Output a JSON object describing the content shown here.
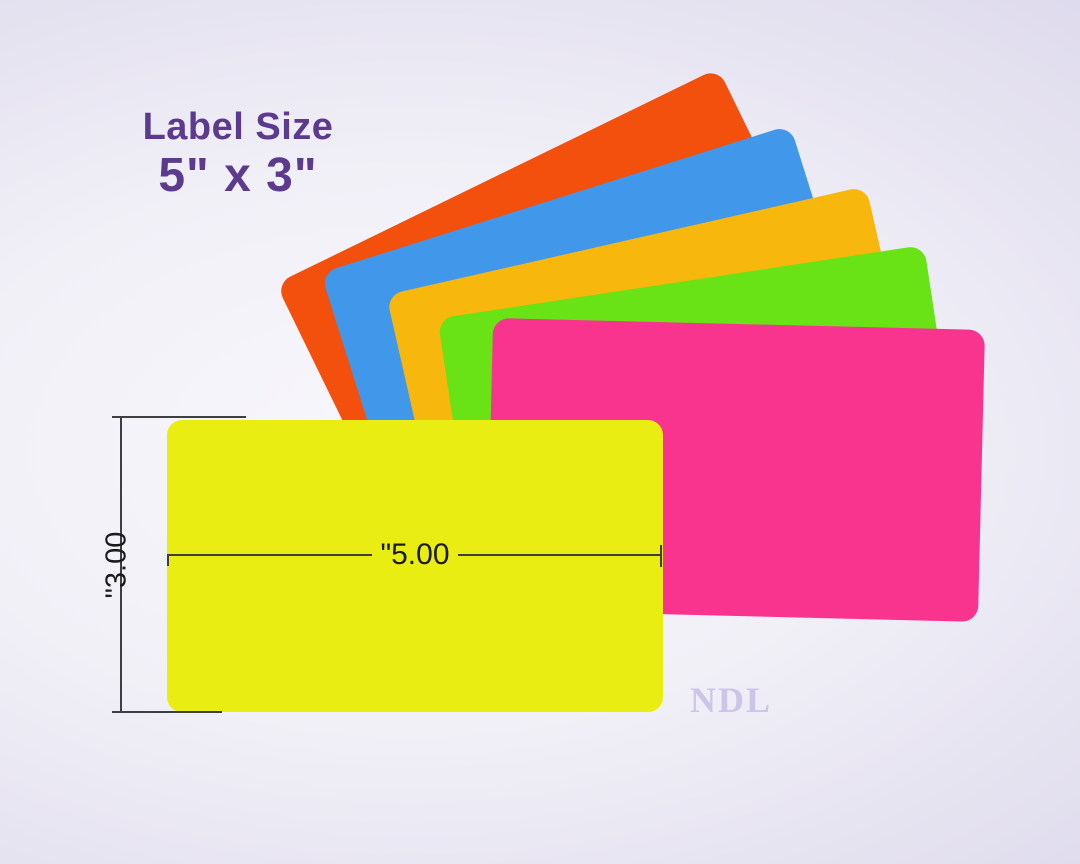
{
  "header": {
    "title_line1": "Label Size",
    "title_line2": "5\" x 3\""
  },
  "diagram": {
    "width_label": "\"5.00",
    "height_label": "\"3.00"
  },
  "watermark": {
    "text": "NDL",
    "color": "#ccc5e8"
  },
  "cards": {
    "orange": {
      "name": "orange label",
      "color": "#f2500c"
    },
    "blue": {
      "name": "blue label",
      "color": "#4197ea"
    },
    "gold": {
      "name": "gold label",
      "color": "#f8b70c"
    },
    "green": {
      "name": "green label",
      "color": "#69e315"
    },
    "pink": {
      "name": "pink label",
      "color": "#f9348f"
    },
    "yellow": {
      "name": "yellow label (front, with dimensions)",
      "color": "#eaed12"
    }
  },
  "colors": {
    "title_text": "#5c3a8e",
    "dimension_line": "#3f3f3f",
    "dimension_text": "#1b1b1b",
    "background_center": "#f8f7fc",
    "background_edge": "#d7d2ea"
  }
}
